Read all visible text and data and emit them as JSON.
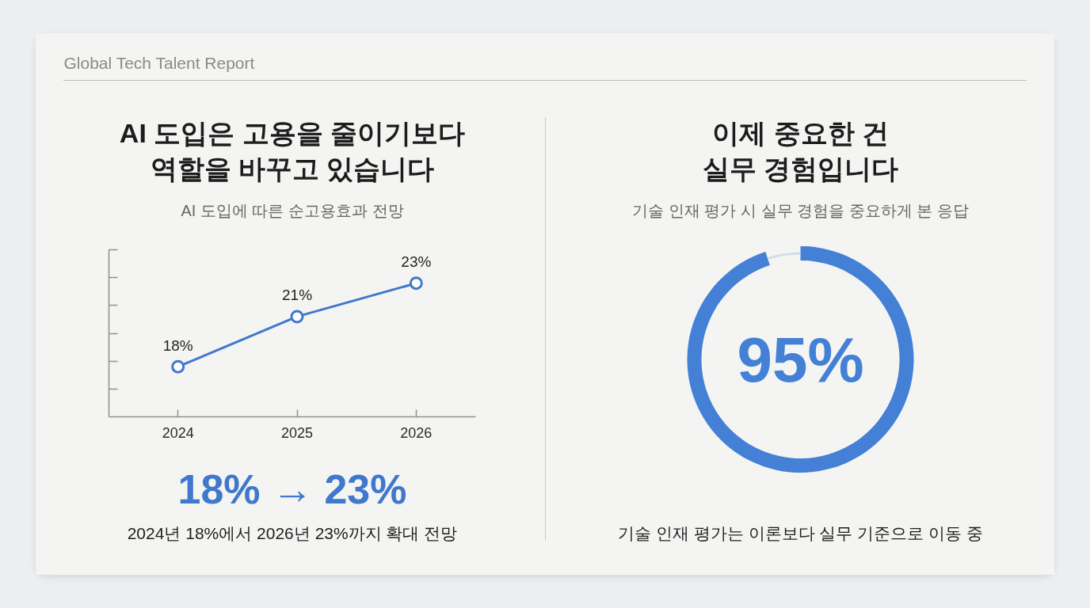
{
  "chart_data": [
    {
      "type": "other",
      "title": "Global Tech Talent Report"
    },
    {
      "type": "line",
      "title": "AI 도입은 고용을 줄이기보다\n역할을 바꾸고 있습니다",
      "subtitle": "AI 도입에 따른 순고용효과 전망",
      "categories": [
        "2024",
        "2025",
        "2026"
      ],
      "values": [
        18,
        21,
        23
      ],
      "value_labels": [
        "18%",
        "21%",
        "23%"
      ],
      "color": "#3f78cc",
      "ylim": [
        15,
        25
      ],
      "yticks": [
        {
          "value": 16.67,
          "label": null
        },
        {
          "value": 18.33,
          "label": null
        },
        {
          "value": 20,
          "label": null
        },
        {
          "value": 21.67,
          "label": null
        },
        {
          "value": 23.33,
          "label": null
        },
        {
          "value": 25,
          "label": null
        }
      ],
      "tick_labels": "x",
      "grid": false,
      "marker": "circle",
      "line_style": "solid",
      "annotations": [
        "18% → 23%",
        "2024년 18%에서 2026년 23%까지 확대 전망"
      ]
    },
    {
      "type": "donut",
      "title": "이제 중요한 건\n실무 경험입니다",
      "subtitle": "기술 인재 평가 시 실무 경험을 중요하게 본 응답",
      "categories": [
        null,
        null
      ],
      "values": [
        95,
        5
      ],
      "colors": [
        "#4380d6",
        "#d3dcea"
      ],
      "value_labels": [
        "95%",
        null
      ],
      "annotations": [
        "기술 인재 평가는 이론보다 실무 기준으로 이동 중"
      ]
    }
  ]
}
